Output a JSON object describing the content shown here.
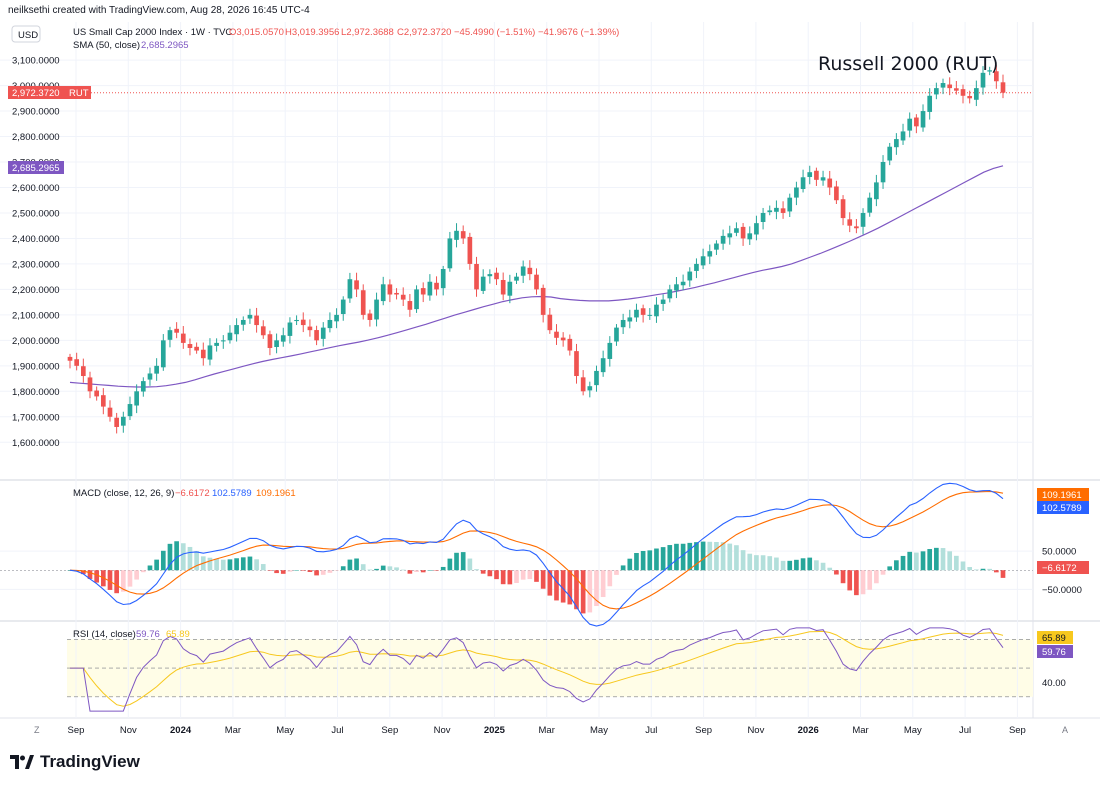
{
  "header": {
    "attribution": "neilksethi created with TradingView.com, Aug 28, 2026 16:45 UTC-4"
  },
  "legend": {
    "currency": "USD",
    "symbol": "US Small Cap 2000 Index · 1W · TVC",
    "ohlc": {
      "o": "O3,015.0570",
      "h": "H3,019.3956",
      "l": "L2,972.3688",
      "c": "C2,972.3720",
      "chg": "−45.4990 (−1.51%)",
      "chg2": "−41.9676 (−1.39%)"
    },
    "sma_label": "SMA (50, close)",
    "sma_value": "2,685.2965",
    "price_tag": "2,972.3720",
    "price_tag_symbol": "RUT",
    "sma_tag": "2,685.2965"
  },
  "annotation": "Russell 2000 (RUT)",
  "macd_legend": {
    "label": "MACD (close, 12, 26, 9)",
    "hist": "−6.6172",
    "macd": "102.5789",
    "signal": "109.1961"
  },
  "rsi_legend": {
    "label": "RSI (14, close)",
    "rsi": "59.76",
    "ma": "65.89"
  },
  "footer": {
    "brand": "TradingView"
  },
  "colors": {
    "up": "#26a69a",
    "down": "#ef5350",
    "sma": "#7e57c2",
    "macd": "#2962ff",
    "signal": "#ff6d00",
    "rsi": "#7e57c2",
    "rsi_ma": "#f7c81e"
  },
  "chart_data": {
    "type": "candlestick",
    "price_axis": {
      "ylim": [
        1550,
        3120
      ],
      "ticks": [
        "3,100.0000",
        "3,000.0000",
        "2,900.0000",
        "2,800.0000",
        "2,700.0000",
        "2,600.0000",
        "2,500.0000",
        "2,400.0000",
        "2,300.0000",
        "2,200.0000",
        "2,100.0000",
        "2,000.0000",
        "1,900.0000",
        "1,800.0000",
        "1,700.0000",
        "1,600.0000"
      ]
    },
    "x_ticks": [
      "Sep",
      "Nov",
      "2024",
      "Mar",
      "May",
      "Jul",
      "Sep",
      "Nov",
      "2025",
      "Mar",
      "May",
      "Jul",
      "Sep",
      "Nov",
      "2026",
      "Mar",
      "May",
      "Jul",
      "Sep"
    ],
    "close": [
      1920,
      1900,
      1860,
      1800,
      1780,
      1740,
      1700,
      1660,
      1700,
      1750,
      1800,
      1840,
      1870,
      1900,
      2000,
      2040,
      2030,
      1990,
      1970,
      1960,
      1930,
      1980,
      1990,
      2000,
      2030,
      2060,
      2080,
      2100,
      2060,
      2020,
      1970,
      2000,
      2020,
      2070,
      2080,
      2060,
      2040,
      2000,
      2050,
      2080,
      2100,
      2160,
      2240,
      2200,
      2100,
      2080,
      2160,
      2220,
      2180,
      2180,
      2160,
      2120,
      2200,
      2180,
      2230,
      2200,
      2280,
      2400,
      2430,
      2400,
      2300,
      2200,
      2250,
      2260,
      2240,
      2180,
      2230,
      2250,
      2290,
      2260,
      2200,
      2100,
      2040,
      2010,
      2000,
      1960,
      1860,
      1800,
      1820,
      1880,
      1930,
      1990,
      2050,
      2080,
      2090,
      2120,
      2100,
      2100,
      2140,
      2160,
      2200,
      2220,
      2230,
      2270,
      2300,
      2330,
      2350,
      2380,
      2410,
      2420,
      2440,
      2400,
      2420,
      2460,
      2500,
      2510,
      2520,
      2500,
      2560,
      2600,
      2640,
      2660,
      2630,
      2640,
      2600,
      2550,
      2480,
      2450,
      2440,
      2500,
      2560,
      2620,
      2700,
      2760,
      2790,
      2820,
      2870,
      2840,
      2900,
      2960,
      2990,
      3010,
      2990,
      2980,
      2960,
      2950,
      2990,
      3050,
      3060,
      3017,
      2972
    ],
    "sma50": [
      1835,
      1832,
      1829,
      1826,
      1823,
      1820,
      1818,
      1817,
      1817,
      1818,
      1822,
      1828,
      1835,
      1845,
      1857,
      1868,
      1878,
      1888,
      1898,
      1908,
      1917,
      1925,
      1932,
      1939,
      1947,
      1955,
      1963,
      1971,
      1979,
      1986,
      1993,
      2001,
      2010,
      2020,
      2030,
      2041,
      2052,
      2063,
      2075,
      2087,
      2099,
      2110,
      2121,
      2132,
      2142,
      2152,
      2160,
      2167,
      2171,
      2172,
      2170,
      2164,
      2160,
      2157,
      2155,
      2155,
      2155,
      2158,
      2162,
      2167,
      2173,
      2179,
      2185,
      2192,
      2200,
      2208,
      2217,
      2226,
      2236,
      2246,
      2256,
      2266,
      2275,
      2282,
      2290,
      2300,
      2313,
      2327,
      2341,
      2356,
      2372,
      2388,
      2405,
      2422,
      2440,
      2460,
      2480,
      2500,
      2520,
      2540,
      2560,
      2580,
      2600,
      2620,
      2640,
      2660,
      2675,
      2685
    ],
    "macd": {
      "ylim": [
        -125,
        210
      ],
      "ticks": [
        "50.0000",
        "−50.0000"
      ],
      "last": [
        -6.6172,
        102.5789,
        109.1961
      ]
    },
    "rsi": {
      "ylim": [
        18,
        80
      ],
      "ticks": [
        "40.00"
      ],
      "bands": [
        30,
        70
      ],
      "last": [
        59.76,
        65.89
      ]
    }
  }
}
